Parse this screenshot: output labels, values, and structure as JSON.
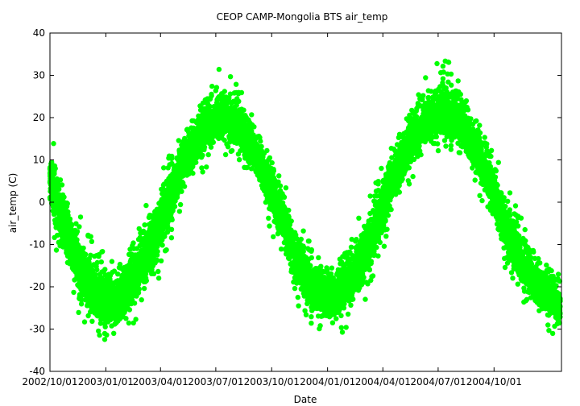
{
  "chart_data": {
    "type": "scatter",
    "title": "CEOP CAMP-Mongolia BTS  air_temp",
    "xlabel": "Date",
    "ylabel": "air_temp (C)",
    "xlim": [
      "2002-10-01",
      "2005-01-20"
    ],
    "ylim": [
      -40,
      40
    ],
    "y_ticks": [
      "-40",
      "-30",
      "-20",
      "-10",
      "0",
      "10",
      "20",
      "30",
      "40"
    ],
    "x_ticks": [
      {
        "date": "2002-10-01",
        "label": "2002/10/01"
      },
      {
        "date": "2003-01-01",
        "label": "2003/01/01"
      },
      {
        "date": "2003-04-01",
        "label": "2003/04/01"
      },
      {
        "date": "2003-07-01",
        "label": "2003/07/01"
      },
      {
        "date": "2003-10-01",
        "label": "2003/10/01"
      },
      {
        "date": "2004-01-01",
        "label": "2004/01/01"
      },
      {
        "date": "2004-04-01",
        "label": "2004/04/01"
      },
      {
        "date": "2004-07-01",
        "label": "2004/07/01"
      },
      {
        "date": "2004-10-01",
        "label": "2004/10/01"
      }
    ],
    "grid": false,
    "legend": "none",
    "series": [
      {
        "color": "#00ff00",
        "x": [
          "2002-10-01",
          "2002-10-11",
          "2002-10-21",
          "2002-10-31",
          "2002-11-10",
          "2002-11-20",
          "2002-11-30",
          "2002-12-10",
          "2002-12-20",
          "2002-12-30",
          "2003-01-09",
          "2003-01-19",
          "2003-01-29",
          "2003-02-08",
          "2003-02-18",
          "2003-02-28",
          "2003-03-10",
          "2003-03-20",
          "2003-03-30",
          "2003-04-09",
          "2003-04-19",
          "2003-04-29",
          "2003-05-09",
          "2003-05-19",
          "2003-05-29",
          "2003-06-08",
          "2003-06-18",
          "2003-06-28",
          "2003-07-08",
          "2003-07-18",
          "2003-07-28",
          "2003-08-07",
          "2003-08-17",
          "2003-08-27",
          "2003-09-06",
          "2003-09-16",
          "2003-09-26",
          "2003-10-06",
          "2003-10-16",
          "2003-10-26",
          "2003-11-05",
          "2003-11-15",
          "2003-11-25",
          "2003-12-05",
          "2003-12-15",
          "2003-12-25",
          "2004-01-04",
          "2004-01-14",
          "2004-01-24",
          "2004-02-03",
          "2004-02-13",
          "2004-02-23",
          "2004-03-04",
          "2004-03-14",
          "2004-03-24",
          "2004-04-03",
          "2004-04-13",
          "2004-04-23",
          "2004-05-03",
          "2004-05-13",
          "2004-05-23",
          "2004-06-02",
          "2004-06-12",
          "2004-06-22",
          "2004-07-02",
          "2004-07-12",
          "2004-07-22",
          "2004-08-01",
          "2004-08-11",
          "2004-08-21",
          "2004-08-31",
          "2004-09-10",
          "2004-09-20",
          "2004-09-30",
          "2004-10-10",
          "2004-10-20",
          "2004-10-30",
          "2004-11-09",
          "2004-11-19",
          "2004-11-29",
          "2004-12-09",
          "2004-12-19",
          "2004-12-29",
          "2005-01-08",
          "2005-01-18"
        ],
        "y": [
          5,
          1,
          -4,
          -9,
          -13,
          -16,
          -18,
          -20,
          -22,
          -23,
          -24,
          -24,
          -22,
          -20,
          -18,
          -15,
          -12,
          -9,
          -5,
          -1,
          3,
          6,
          9,
          12,
          14,
          16,
          18,
          19,
          20,
          20,
          19,
          18,
          16,
          13,
          11,
          8,
          4,
          1,
          -3,
          -7,
          -11,
          -14,
          -17,
          -19,
          -21,
          -22,
          -22,
          -22,
          -21,
          -19,
          -17,
          -14,
          -11,
          -8,
          -4,
          0,
          4,
          7,
          10,
          13,
          15,
          17,
          19,
          20,
          21,
          21,
          20,
          19,
          17,
          15,
          12,
          9,
          6,
          2,
          -2,
          -6,
          -9,
          -12,
          -15,
          -17,
          -19,
          -21,
          -22,
          -23,
          -24
        ],
        "y_min": [
          -8,
          -12,
          -16,
          -20,
          -24,
          -27,
          -29,
          -31,
          -33,
          -34,
          -34,
          -34,
          -33,
          -31,
          -29,
          -27,
          -24,
          -21,
          -18,
          -14,
          -10,
          -6,
          -2,
          1,
          4,
          6,
          8,
          10,
          11,
          11,
          10,
          9,
          7,
          4,
          2,
          -2,
          -6,
          -10,
          -14,
          -18,
          -22,
          -25,
          -28,
          -30,
          -32,
          -33,
          -33,
          -33,
          -32,
          -30,
          -28,
          -26,
          -23,
          -20,
          -16,
          -12,
          -8,
          -4,
          0,
          3,
          6,
          8,
          10,
          11,
          12,
          12,
          11,
          10,
          8,
          6,
          3,
          0,
          -4,
          -8,
          -12,
          -16,
          -19,
          -22,
          -25,
          -27,
          -29,
          -30,
          -31,
          -32,
          -33
        ],
        "y_max": [
          17,
          13,
          9,
          4,
          0,
          -3,
          -6,
          -8,
          -10,
          -11,
          -12,
          -12,
          -10,
          -8,
          -6,
          -3,
          0,
          3,
          6,
          10,
          13,
          16,
          19,
          22,
          24,
          26,
          28,
          30,
          32,
          31,
          30,
          28,
          26,
          23,
          20,
          17,
          14,
          11,
          7,
          3,
          -1,
          -4,
          -7,
          -9,
          -11,
          -12,
          -12,
          -12,
          -10,
          -8,
          -6,
          -3,
          0,
          3,
          7,
          11,
          14,
          18,
          21,
          23,
          26,
          28,
          30,
          32,
          34,
          36,
          33,
          31,
          29,
          26,
          23,
          20,
          17,
          13,
          9,
          5,
          2,
          -1,
          -4,
          -7,
          -9,
          -11,
          -13,
          -14,
          -16
        ]
      }
    ]
  }
}
